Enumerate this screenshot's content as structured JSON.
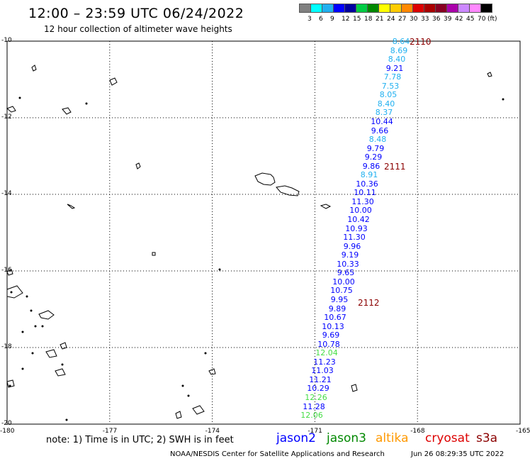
{
  "header": {
    "title": "12:00 – 23:59 UTC 06/24/2022",
    "subtitle": "12 hour collection of altimeter wave heights"
  },
  "legend": {
    "unit": "(ft)",
    "colors": [
      "#808080",
      "#00ffff",
      "#20b0f0",
      "#0000ff",
      "#0000a0",
      "#00cc44",
      "#008800",
      "#ffff00",
      "#ffcc00",
      "#ff8800",
      "#dd0000",
      "#aa0000",
      "#880022",
      "#aa00aa",
      "#cc88ff",
      "#ff88ff",
      "#000000"
    ],
    "labels": [
      "3",
      "6",
      "9",
      "12",
      "15",
      "18",
      "21",
      "24",
      "27",
      "30",
      "33",
      "36",
      "39",
      "42",
      "45",
      "70"
    ]
  },
  "map": {
    "lon_range": [
      -180,
      -165
    ],
    "lat_range": [
      -20,
      -10
    ],
    "y_ticks": [
      "-10",
      "-12",
      "-14",
      "-16",
      "-18",
      "-20"
    ],
    "x_ticks": [
      "-180",
      "-177",
      "-174",
      "-171",
      "-168",
      "-165"
    ],
    "grid": true
  },
  "passes": [
    {
      "id": "2110",
      "color": "#8b0000"
    },
    {
      "id": "2111",
      "color": "#8b0000"
    },
    {
      "id": "2112",
      "color": "#8b0000"
    }
  ],
  "observations": [
    {
      "v": "8.64",
      "c": "#20b0f0"
    },
    {
      "v": "8.69",
      "c": "#20b0f0"
    },
    {
      "v": "8.40",
      "c": "#20b0f0"
    },
    {
      "v": "9.21",
      "c": "#0000ff"
    },
    {
      "v": "7.78",
      "c": "#20b0f0"
    },
    {
      "v": "7.53",
      "c": "#20b0f0"
    },
    {
      "v": "8.05",
      "c": "#20b0f0"
    },
    {
      "v": "8.40",
      "c": "#20b0f0"
    },
    {
      "v": "8.37",
      "c": "#20b0f0"
    },
    {
      "v": "10.44",
      "c": "#0000ff"
    },
    {
      "v": "9.66",
      "c": "#0000ff"
    },
    {
      "v": "8.48",
      "c": "#20b0f0"
    },
    {
      "v": "9.79",
      "c": "#0000ff"
    },
    {
      "v": "9.29",
      "c": "#0000ff"
    },
    {
      "v": "9.86",
      "c": "#0000ff"
    },
    {
      "v": "8.91",
      "c": "#20b0f0"
    },
    {
      "v": "10.36",
      "c": "#0000ff"
    },
    {
      "v": "10.11",
      "c": "#0000ff"
    },
    {
      "v": "11.30",
      "c": "#0000ff"
    },
    {
      "v": "10.00",
      "c": "#0000ff"
    },
    {
      "v": "10.42",
      "c": "#0000ff"
    },
    {
      "v": "10.93",
      "c": "#0000ff"
    },
    {
      "v": "11.30",
      "c": "#0000ff"
    },
    {
      "v": "9.96",
      "c": "#0000ff"
    },
    {
      "v": "9.19",
      "c": "#0000ff"
    },
    {
      "v": "10.33",
      "c": "#0000ff"
    },
    {
      "v": "9.65",
      "c": "#0000ff"
    },
    {
      "v": "10.00",
      "c": "#0000ff"
    },
    {
      "v": "10.75",
      "c": "#0000ff"
    },
    {
      "v": "9.95",
      "c": "#0000ff"
    },
    {
      "v": "9.89",
      "c": "#0000ff"
    },
    {
      "v": "10.67",
      "c": "#0000ff"
    },
    {
      "v": "10.13",
      "c": "#0000ff"
    },
    {
      "v": "9.69",
      "c": "#0000ff"
    },
    {
      "v": "10.78",
      "c": "#0000ff"
    },
    {
      "v": "12.04",
      "c": "#44dd44"
    },
    {
      "v": "11.23",
      "c": "#0000ff"
    },
    {
      "v": "11.03",
      "c": "#0000ff"
    },
    {
      "v": "11.21",
      "c": "#0000ff"
    },
    {
      "v": "10.29",
      "c": "#0000ff"
    },
    {
      "v": "12.26",
      "c": "#44dd44"
    },
    {
      "v": "11.28",
      "c": "#0000ff"
    },
    {
      "v": "12.06",
      "c": "#44dd44"
    }
  ],
  "footer": {
    "note": "note:  1) Time is in UTC;  2) SWH is in feet",
    "satellites": [
      {
        "name": "jason2",
        "color": "#0000ff"
      },
      {
        "name": "jason3",
        "color": "#008800"
      },
      {
        "name": "altika",
        "color": "#ff9900"
      },
      {
        "name": "cryosat",
        "color": "#dd0000"
      },
      {
        "name": "s3a",
        "color": "#8b0000"
      }
    ],
    "credit": "NOAA/NESDIS Center for Satellite Applications and Research",
    "timestamp": "Jun 26 08:29:35 UTC 2022"
  }
}
